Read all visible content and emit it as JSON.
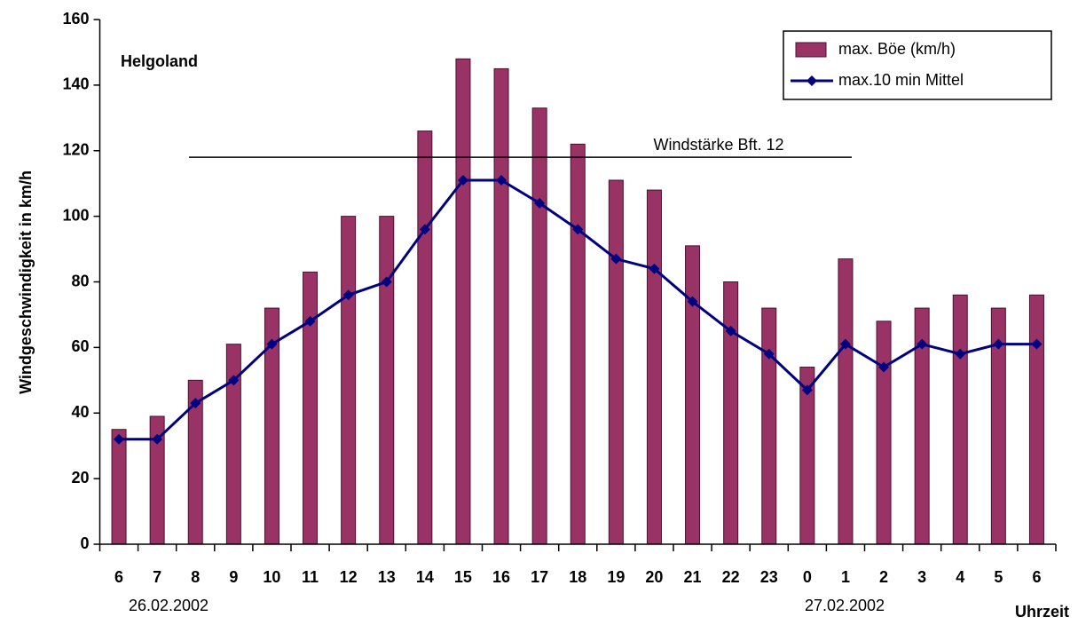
{
  "chart_data": {
    "type": "bar",
    "location": "Helgoland",
    "reference_label": "Windstärke Bft. 12",
    "reference_value": 118,
    "date_start": "26.02.2002",
    "date_end": "27.02.2002",
    "x_label": "Uhrzeit",
    "y_label": "Windgeschwindigkeit in km/h",
    "categories": [
      "6",
      "7",
      "8",
      "9",
      "10",
      "11",
      "12",
      "13",
      "14",
      "15",
      "16",
      "17",
      "18",
      "19",
      "20",
      "21",
      "22",
      "23",
      "0",
      "1",
      "2",
      "3",
      "4",
      "5",
      "6"
    ],
    "series": [
      {
        "name": "max. Böe (km/h)",
        "type": "bar",
        "color": "#993366",
        "values": [
          35,
          39,
          50,
          61,
          72,
          83,
          100,
          100,
          126,
          148,
          145,
          133,
          122,
          111,
          108,
          91,
          80,
          72,
          54,
          87,
          68,
          72,
          76,
          72,
          76
        ]
      },
      {
        "name": "max.10 min Mittel",
        "type": "line",
        "color": "#000080",
        "values": [
          32,
          32,
          43,
          50,
          61,
          68,
          76,
          80,
          96,
          111,
          111,
          104,
          96,
          87,
          84,
          74,
          65,
          58,
          47,
          61,
          54,
          61,
          58,
          61,
          61
        ]
      }
    ],
    "ylim": [
      0,
      160
    ],
    "yticks": [
      0,
      20,
      40,
      60,
      80,
      100,
      120,
      140,
      160
    ],
    "legend": "upper right"
  }
}
